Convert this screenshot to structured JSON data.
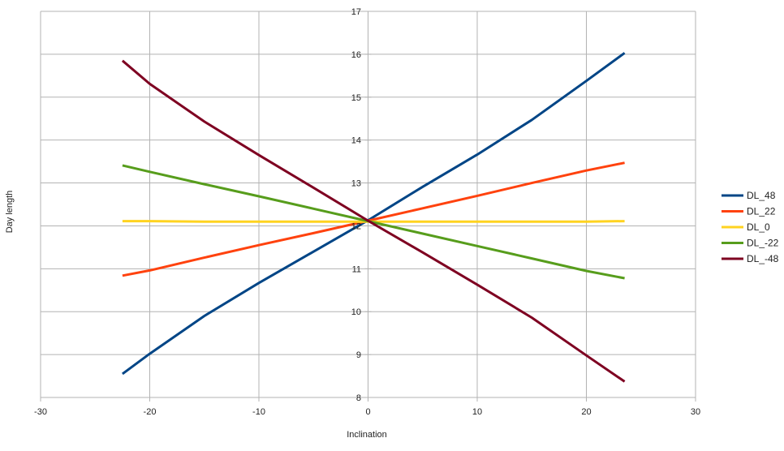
{
  "chart_data": {
    "type": "line",
    "title": "",
    "xlabel": "Inclination",
    "ylabel": "Day length",
    "xlim": [
      -30,
      30
    ],
    "ylim": [
      8,
      17
    ],
    "x_ticks": [
      -30,
      -20,
      -10,
      0,
      10,
      20,
      30
    ],
    "y_ticks": [
      8,
      9,
      10,
      11,
      12,
      13,
      14,
      15,
      16,
      17
    ],
    "grid": true,
    "legend_position": "right",
    "x": [
      -22.5,
      -20,
      -15,
      -10,
      -5,
      0,
      5,
      10,
      15,
      20,
      23.5
    ],
    "series": [
      {
        "name": "DL_48",
        "color": "#004586",
        "values": [
          8.55,
          9.02,
          9.9,
          10.67,
          11.4,
          12.13,
          12.91,
          13.66,
          14.47,
          15.38,
          16.03
        ]
      },
      {
        "name": "DL_22",
        "color": "#ff420e",
        "values": [
          10.84,
          10.96,
          11.26,
          11.55,
          11.83,
          12.12,
          12.41,
          12.7,
          13.0,
          13.29,
          13.47
        ]
      },
      {
        "name": "DL_0",
        "color": "#ffd320",
        "values": [
          12.11,
          12.11,
          12.1,
          12.1,
          12.1,
          12.1,
          12.1,
          12.1,
          12.1,
          12.1,
          12.11
        ]
      },
      {
        "name": "DL_-22",
        "color": "#579d1c",
        "values": [
          13.41,
          13.26,
          12.97,
          12.69,
          12.4,
          12.11,
          11.82,
          11.53,
          11.24,
          10.95,
          10.78
        ]
      },
      {
        "name": "DL_-48",
        "color": "#7e0021",
        "values": [
          15.85,
          15.31,
          14.43,
          13.65,
          12.89,
          12.12,
          11.38,
          10.63,
          9.86,
          8.98,
          8.37
        ]
      }
    ]
  }
}
